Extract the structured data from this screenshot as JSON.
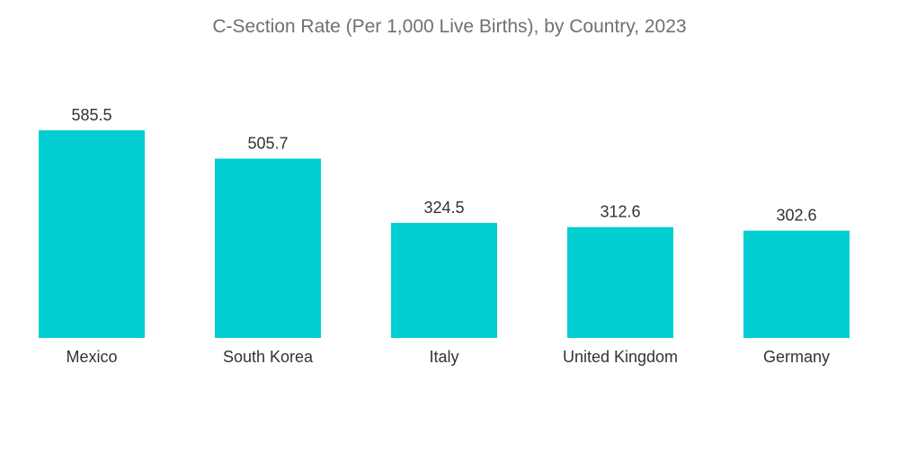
{
  "chart_data": {
    "type": "bar",
    "title": "C-Section Rate (Per 1,000 Live Births), by Country, 2023",
    "categories": [
      "Mexico",
      "South Korea",
      "Italy",
      "United Kingdom",
      "Germany"
    ],
    "values": [
      585.5,
      505.7,
      324.5,
      312.6,
      302.6
    ],
    "value_labels": [
      "585.5",
      "505.7",
      "324.5",
      "312.6",
      "302.6"
    ],
    "bar_color": "#00CED1",
    "xlabel": "",
    "ylabel": "",
    "ylim": [
      0,
      585.5
    ],
    "grid": false,
    "legend": "none"
  }
}
